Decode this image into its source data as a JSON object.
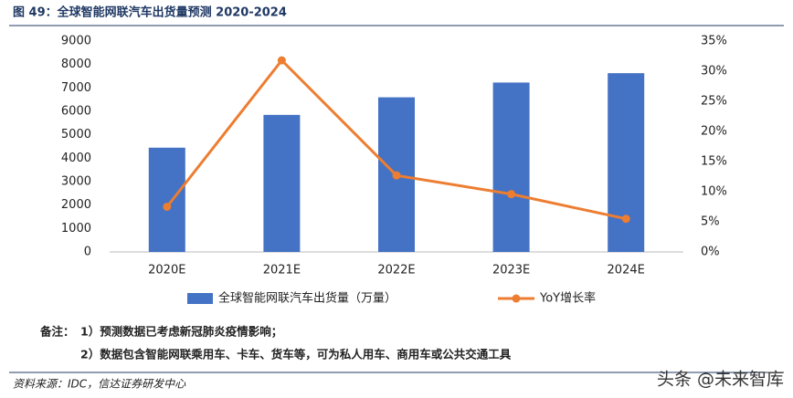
{
  "chart_data": {
    "type": "bar",
    "title": "图 49：全球智能网联汽车出货量预测 2020-2024",
    "categories": [
      "2020E",
      "2021E",
      "2022E",
      "2023E",
      "2024E"
    ],
    "series": [
      {
        "name": "全球智能网联汽车出货量（万量）",
        "type": "bar",
        "color": "#4472c4",
        "values": [
          4450,
          5850,
          6600,
          7230,
          7630
        ]
      },
      {
        "name": "YoY增长率",
        "type": "line",
        "axis": "y2",
        "color": "#ed7d31",
        "values": [
          7.5,
          31.8,
          12.7,
          9.6,
          5.5
        ]
      }
    ],
    "ylim": [
      0,
      9000
    ],
    "yticks": [
      0,
      1000,
      2000,
      3000,
      4000,
      5000,
      6000,
      7000,
      8000,
      9000
    ],
    "y2lim": [
      0,
      35
    ],
    "y2ticks": [
      {
        "value": 0,
        "label": "0%"
      },
      {
        "value": 5,
        "label": "5%"
      },
      {
        "value": 10,
        "label": "10%"
      },
      {
        "value": 15,
        "label": "15%"
      },
      {
        "value": 20,
        "label": "20%"
      },
      {
        "value": 25,
        "label": "25%"
      },
      {
        "value": 30,
        "label": "30%"
      },
      {
        "value": 35,
        "label": "35%"
      }
    ],
    "grid": false,
    "legend": "bottom"
  },
  "notes_label": "备注：",
  "notes": [
    "1）预测数据已考虑新冠肺炎疫情影响；",
    "2）数据包含智能网联乘用车、卡车、货车等，可为私人用车、商用车或公共交通工具"
  ],
  "source": "资料来源：IDC，信达证券研发中心",
  "watermark": "头条 @未来智库"
}
